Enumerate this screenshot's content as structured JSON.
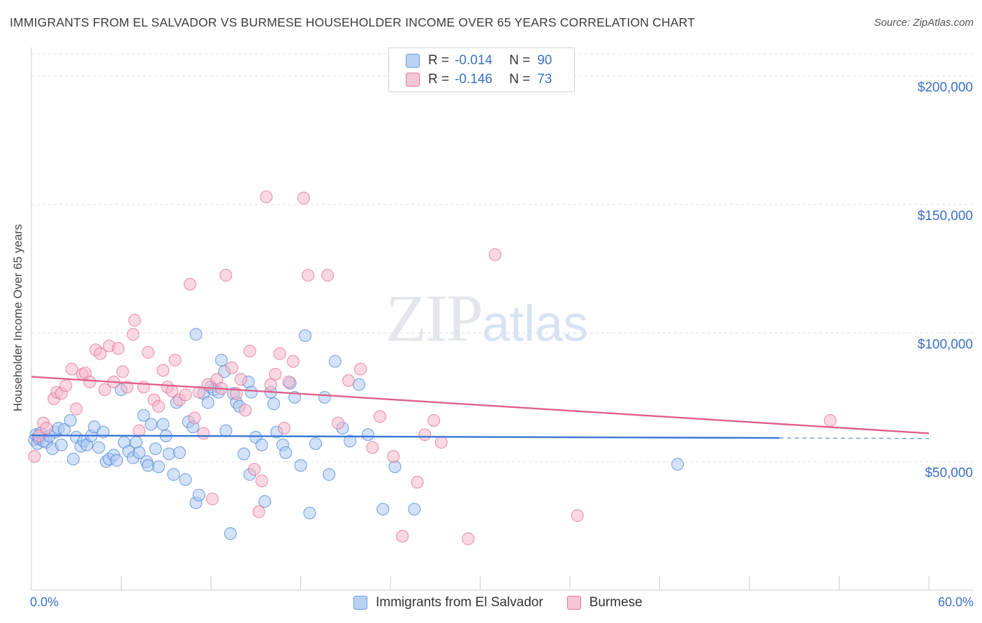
{
  "header": {
    "title": "IMMIGRANTS FROM EL SALVADOR VS BURMESE HOUSEHOLDER INCOME OVER 65 YEARS CORRELATION CHART",
    "source": "Source: ZipAtlas.com"
  },
  "watermark": {
    "zip": "ZIP",
    "atlas": "atlas"
  },
  "legend": {
    "r_label": "R =",
    "n_label": "N =",
    "items": [
      {
        "name": "Immigrants from El Salvador",
        "r": "-0.014",
        "n": "90",
        "color": "#6f9ee0",
        "fill": "#b9d2f3"
      },
      {
        "name": "Burmese",
        "r": "-0.146",
        "n": "73",
        "color": "#e6789c",
        "fill": "#f7c6d5"
      }
    ]
  },
  "chart_data": {
    "type": "scatter",
    "title": "IMMIGRANTS FROM EL SALVADOR VS BURMESE HOUSEHOLDER INCOME OVER 65 YEARS CORRELATION CHART",
    "xlabel": "",
    "ylabel": "Householder Income Over 65 years",
    "xlim": [
      0,
      60
    ],
    "ylim": [
      0,
      210000
    ],
    "x_tick_labels": [
      "0.0%",
      "60.0%"
    ],
    "y_ticks": [
      50000,
      100000,
      150000,
      200000
    ],
    "y_tick_labels": [
      "$50,000",
      "$100,000",
      "$150,000",
      "$200,000"
    ],
    "grid": true,
    "legend_position": "top-center",
    "series": [
      {
        "name": "Immigrants from El Salvador",
        "color": "#3a78d4",
        "fill": "#aecbf0",
        "trend": {
          "x0": 0,
          "y0": 60200,
          "x1": 50,
          "y1": 59200,
          "dashed_to": 60
        },
        "points": [
          [
            0.2,
            58500
          ],
          [
            0.3,
            60500
          ],
          [
            0.4,
            57000
          ],
          [
            0.5,
            59000
          ],
          [
            0.6,
            61000
          ],
          [
            0.8,
            58000
          ],
          [
            1.0,
            57500
          ],
          [
            1.2,
            60000
          ],
          [
            1.4,
            55000
          ],
          [
            1.6,
            61500
          ],
          [
            1.8,
            63000
          ],
          [
            2.0,
            56500
          ],
          [
            2.2,
            62500
          ],
          [
            2.6,
            66000
          ],
          [
            2.8,
            51000
          ],
          [
            3.0,
            59500
          ],
          [
            3.3,
            56000
          ],
          [
            3.5,
            58000
          ],
          [
            3.7,
            56500
          ],
          [
            4.0,
            60000
          ],
          [
            4.2,
            63500
          ],
          [
            4.5,
            55500
          ],
          [
            4.8,
            61500
          ],
          [
            5.0,
            50000
          ],
          [
            5.2,
            51000
          ],
          [
            5.5,
            52500
          ],
          [
            5.7,
            50500
          ],
          [
            6.0,
            78000
          ],
          [
            6.2,
            57500
          ],
          [
            6.5,
            54000
          ],
          [
            6.8,
            51500
          ],
          [
            7.0,
            57500
          ],
          [
            7.2,
            53500
          ],
          [
            7.5,
            68000
          ],
          [
            7.7,
            50000
          ],
          [
            7.8,
            48500
          ],
          [
            8.0,
            64500
          ],
          [
            8.3,
            55000
          ],
          [
            8.5,
            48000
          ],
          [
            8.8,
            64500
          ],
          [
            9.0,
            60000
          ],
          [
            9.2,
            53000
          ],
          [
            9.5,
            45000
          ],
          [
            9.7,
            73000
          ],
          [
            9.9,
            53500
          ],
          [
            10.3,
            43000
          ],
          [
            10.5,
            65500
          ],
          [
            10.8,
            63500
          ],
          [
            11.0,
            99500
          ],
          [
            11.0,
            34000
          ],
          [
            11.2,
            37000
          ],
          [
            11.5,
            76500
          ],
          [
            11.8,
            73000
          ],
          [
            12.0,
            79000
          ],
          [
            12.2,
            78000
          ],
          [
            12.5,
            77000
          ],
          [
            12.7,
            89500
          ],
          [
            12.9,
            85000
          ],
          [
            13.0,
            62000
          ],
          [
            13.3,
            22000
          ],
          [
            13.5,
            76500
          ],
          [
            13.7,
            73000
          ],
          [
            13.9,
            71500
          ],
          [
            14.2,
            53000
          ],
          [
            14.5,
            81000
          ],
          [
            14.7,
            77000
          ],
          [
            14.6,
            45000
          ],
          [
            15.0,
            59500
          ],
          [
            15.4,
            56500
          ],
          [
            15.6,
            34500
          ],
          [
            16.0,
            77000
          ],
          [
            16.2,
            72500
          ],
          [
            16.4,
            61500
          ],
          [
            16.8,
            56500
          ],
          [
            17.0,
            53500
          ],
          [
            17.3,
            80500
          ],
          [
            17.6,
            75000
          ],
          [
            18.0,
            48500
          ],
          [
            18.3,
            99000
          ],
          [
            18.6,
            30000
          ],
          [
            19.0,
            57000
          ],
          [
            19.6,
            75000
          ],
          [
            19.9,
            45000
          ],
          [
            20.3,
            89000
          ],
          [
            20.8,
            63000
          ],
          [
            21.3,
            58000
          ],
          [
            21.9,
            80000
          ],
          [
            22.5,
            60500
          ],
          [
            23.5,
            31500
          ],
          [
            24.3,
            48000
          ],
          [
            25.6,
            31500
          ],
          [
            43.2,
            49000
          ]
        ]
      },
      {
        "name": "Burmese",
        "color": "#e0608a",
        "fill": "#f5b8cb",
        "trend": {
          "x0": 0,
          "y0": 83000,
          "x1": 60,
          "y1": 61000
        },
        "points": [
          [
            0.2,
            52000
          ],
          [
            0.5,
            60000
          ],
          [
            0.8,
            65000
          ],
          [
            1.0,
            63000
          ],
          [
            1.5,
            74500
          ],
          [
            1.7,
            77000
          ],
          [
            2.0,
            76500
          ],
          [
            2.3,
            79500
          ],
          [
            2.7,
            86000
          ],
          [
            3.0,
            70500
          ],
          [
            3.4,
            84000
          ],
          [
            3.6,
            84500
          ],
          [
            3.9,
            81000
          ],
          [
            4.3,
            93500
          ],
          [
            4.6,
            92000
          ],
          [
            4.9,
            78000
          ],
          [
            5.2,
            95000
          ],
          [
            5.5,
            81000
          ],
          [
            5.8,
            94000
          ],
          [
            6.1,
            85000
          ],
          [
            6.4,
            79000
          ],
          [
            6.8,
            99500
          ],
          [
            6.9,
            105000
          ],
          [
            7.2,
            62000
          ],
          [
            7.5,
            79000
          ],
          [
            7.8,
            92500
          ],
          [
            8.2,
            74000
          ],
          [
            8.5,
            71500
          ],
          [
            8.8,
            85500
          ],
          [
            9.1,
            79000
          ],
          [
            9.4,
            77500
          ],
          [
            9.6,
            89500
          ],
          [
            9.9,
            74000
          ],
          [
            10.3,
            76000
          ],
          [
            10.6,
            119000
          ],
          [
            10.9,
            67000
          ],
          [
            11.2,
            77000
          ],
          [
            11.5,
            61000
          ],
          [
            11.8,
            80000
          ],
          [
            12.1,
            35500
          ],
          [
            12.4,
            82000
          ],
          [
            12.7,
            78500
          ],
          [
            13.0,
            122500
          ],
          [
            13.4,
            86500
          ],
          [
            13.7,
            76500
          ],
          [
            14.0,
            82000
          ],
          [
            14.3,
            70000
          ],
          [
            14.6,
            93000
          ],
          [
            14.9,
            47000
          ],
          [
            15.2,
            30500
          ],
          [
            15.4,
            42500
          ],
          [
            15.7,
            153000
          ],
          [
            16.0,
            80000
          ],
          [
            16.3,
            84000
          ],
          [
            16.6,
            92000
          ],
          [
            16.9,
            63000
          ],
          [
            17.2,
            81000
          ],
          [
            17.5,
            89000
          ],
          [
            18.2,
            152500
          ],
          [
            18.5,
            122500
          ],
          [
            19.8,
            122500
          ],
          [
            20.5,
            65000
          ],
          [
            21.2,
            81500
          ],
          [
            22.0,
            86000
          ],
          [
            22.8,
            55500
          ],
          [
            23.3,
            67500
          ],
          [
            24.2,
            52000
          ],
          [
            24.8,
            21000
          ],
          [
            25.8,
            42000
          ],
          [
            26.3,
            60500
          ],
          [
            26.9,
            66000
          ],
          [
            27.4,
            57500
          ],
          [
            29.2,
            20000
          ],
          [
            31.0,
            130500
          ],
          [
            36.5,
            29000
          ],
          [
            53.4,
            66000
          ]
        ]
      }
    ]
  }
}
